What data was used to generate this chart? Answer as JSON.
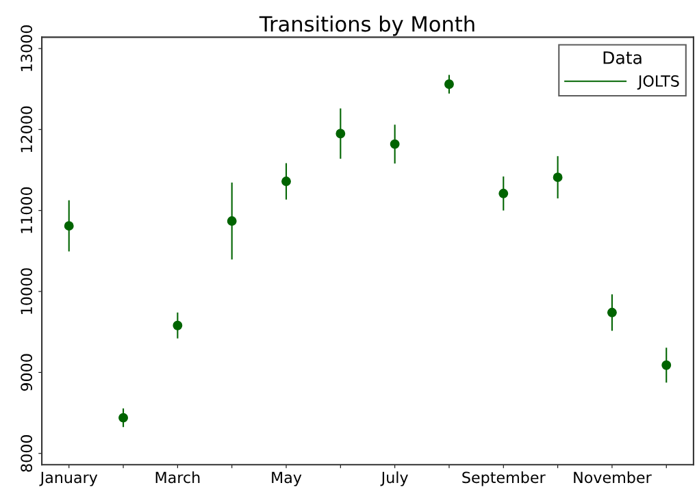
{
  "chart_data": {
    "type": "scatter",
    "title": "Transitions by Month",
    "legend_title": "Data",
    "categories": [
      "January",
      null,
      "March",
      null,
      "May",
      null,
      "July",
      null,
      "September",
      null,
      "November",
      null
    ],
    "series": [
      {
        "name": "JOLTS",
        "color": "#006400",
        "values": [
          10810,
          8440,
          9580,
          10870,
          11360,
          11950,
          11820,
          12560,
          11210,
          11410,
          9740,
          9090
        ],
        "errors": [
          315,
          115,
          160,
          475,
          225,
          310,
          240,
          115,
          210,
          260,
          225,
          215
        ]
      }
    ],
    "ylim": [
      7860,
      13140
    ],
    "yticks": [
      8000,
      9000,
      10000,
      11000,
      12000,
      13000
    ],
    "marker": "circle",
    "legend": "top right",
    "grid": false
  }
}
